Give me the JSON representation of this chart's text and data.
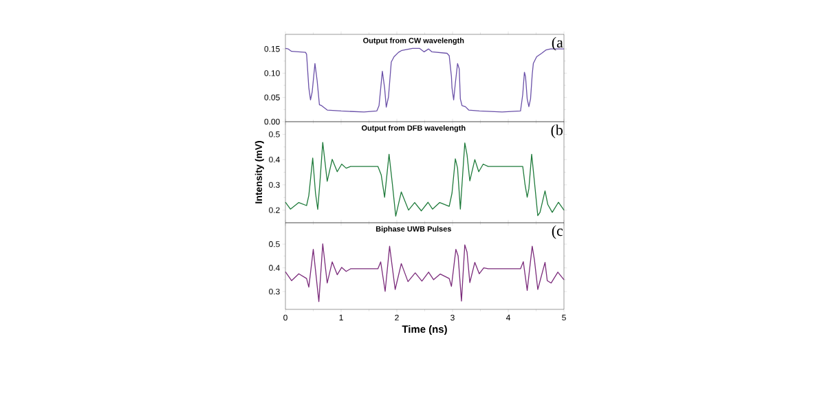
{
  "chart_data": [
    {
      "type": "line",
      "title": "Output from CW wavelength",
      "annotations": [
        "(a"
      ],
      "color": "#6a50a8",
      "xlim": [
        0,
        5
      ],
      "xticks": [
        0,
        1,
        2,
        3,
        4,
        5
      ],
      "ylim": [
        0,
        0.18
      ],
      "yticks": [
        {
          "value": 0,
          "label": "0.00"
        },
        0.05,
        {
          "value": 0.1,
          "label": "0.10"
        },
        0.15
      ],
      "tick_labels": "y",
      "x": [
        0,
        0.05,
        0.11,
        0.36,
        0.38,
        0.42,
        0.45,
        0.48,
        0.53,
        0.57,
        0.61,
        0.65,
        0.75,
        1.0,
        1.41,
        1.64,
        1.68,
        1.74,
        1.78,
        1.81,
        1.85,
        1.9,
        1.95,
        2.03,
        2.09,
        2.28,
        2.41,
        2.49,
        2.57,
        2.63,
        2.9,
        2.94,
        2.98,
        2.99,
        3.02,
        3.05,
        3.09,
        3.12,
        3.14,
        3.17,
        3.23,
        3.29,
        3.48,
        3.89,
        4.22,
        4.26,
        4.29,
        4.31,
        4.34,
        4.37,
        4.4,
        4.43,
        4.45,
        4.51,
        4.6,
        4.68,
        4.76,
        5.0
      ],
      "values": [
        0.151,
        0.15,
        0.145,
        0.143,
        0.139,
        0.07,
        0.045,
        0.061,
        0.12,
        0.084,
        0.035,
        0.033,
        0.024,
        0.022,
        0.02,
        0.022,
        0.033,
        0.104,
        0.07,
        0.03,
        0.051,
        0.123,
        0.134,
        0.143,
        0.147,
        0.151,
        0.151,
        0.144,
        0.15,
        0.144,
        0.141,
        0.136,
        0.093,
        0.07,
        0.045,
        0.079,
        0.12,
        0.109,
        0.047,
        0.033,
        0.031,
        0.024,
        0.022,
        0.02,
        0.022,
        0.056,
        0.102,
        0.093,
        0.047,
        0.031,
        0.047,
        0.097,
        0.12,
        0.134,
        0.141,
        0.148,
        0.15,
        0.15
      ]
    },
    {
      "type": "line",
      "title": "Output from DFB wavelength",
      "ylabel": "Intensity (mV)",
      "annotations": [
        "(b"
      ],
      "color": "#1e7a3a",
      "xlim": [
        0,
        5
      ],
      "xticks": [
        0,
        1,
        2,
        3,
        4,
        5
      ],
      "ylim": [
        0.15,
        0.55
      ],
      "yticks": [
        0.2,
        0.3,
        0.4,
        0.5
      ],
      "tick_labels": "y",
      "x": [
        0,
        0.09,
        0.24,
        0.38,
        0.42,
        0.49,
        0.54,
        0.58,
        0.62,
        0.67,
        0.75,
        0.84,
        0.93,
        1.01,
        1.09,
        1.17,
        1.66,
        1.72,
        1.78,
        1.86,
        1.92,
        1.98,
        2.08,
        2.21,
        2.32,
        2.44,
        2.56,
        2.64,
        2.77,
        2.94,
        2.99,
        3.05,
        3.09,
        3.14,
        3.22,
        3.26,
        3.31,
        3.4,
        3.47,
        3.55,
        3.64,
        4.26,
        4.3,
        4.34,
        4.37,
        4.42,
        4.47,
        4.53,
        4.57,
        4.66,
        4.71,
        4.79,
        4.9,
        5.0
      ],
      "values": [
        0.231,
        0.204,
        0.23,
        0.218,
        0.258,
        0.406,
        0.267,
        0.203,
        0.312,
        0.468,
        0.314,
        0.401,
        0.352,
        0.382,
        0.366,
        0.373,
        0.373,
        0.339,
        0.251,
        0.421,
        0.303,
        0.176,
        0.272,
        0.2,
        0.23,
        0.197,
        0.231,
        0.204,
        0.23,
        0.215,
        0.267,
        0.403,
        0.366,
        0.204,
        0.466,
        0.419,
        0.316,
        0.4,
        0.352,
        0.382,
        0.373,
        0.373,
        0.303,
        0.251,
        0.285,
        0.421,
        0.312,
        0.178,
        0.191,
        0.276,
        0.222,
        0.191,
        0.231,
        0.2
      ]
    },
    {
      "type": "line",
      "title": "Biphase UWB Pulses",
      "xlabel": "Time (ns)",
      "annotations": [
        "(c"
      ],
      "color": "#7a2a7a",
      "xlim": [
        0,
        5
      ],
      "xticks": [
        0,
        1,
        2,
        3,
        4,
        5
      ],
      "ylim": [
        0.225,
        0.59
      ],
      "yticks": [
        0.3,
        0.4,
        0.5
      ],
      "x": [
        0,
        0.11,
        0.24,
        0.38,
        0.42,
        0.5,
        0.6,
        0.67,
        0.75,
        0.84,
        0.93,
        1.01,
        1.09,
        1.17,
        1.66,
        1.71,
        1.79,
        1.87,
        1.97,
        2.08,
        2.2,
        2.33,
        2.45,
        2.57,
        2.66,
        2.78,
        2.94,
        2.98,
        3.06,
        3.1,
        3.16,
        3.22,
        3.26,
        3.31,
        3.4,
        3.48,
        3.56,
        3.64,
        4.22,
        4.27,
        4.34,
        4.43,
        4.47,
        4.53,
        4.66,
        4.7,
        4.77,
        4.89,
        5.0
      ],
      "values": [
        0.383,
        0.346,
        0.375,
        0.355,
        0.319,
        0.478,
        0.258,
        0.501,
        0.336,
        0.425,
        0.371,
        0.402,
        0.385,
        0.396,
        0.396,
        0.425,
        0.301,
        0.491,
        0.309,
        0.418,
        0.342,
        0.379,
        0.344,
        0.382,
        0.35,
        0.374,
        0.355,
        0.322,
        0.478,
        0.45,
        0.26,
        0.497,
        0.466,
        0.338,
        0.423,
        0.375,
        0.4,
        0.396,
        0.396,
        0.426,
        0.305,
        0.491,
        0.433,
        0.309,
        0.423,
        0.346,
        0.336,
        0.382,
        0.35
      ]
    }
  ]
}
